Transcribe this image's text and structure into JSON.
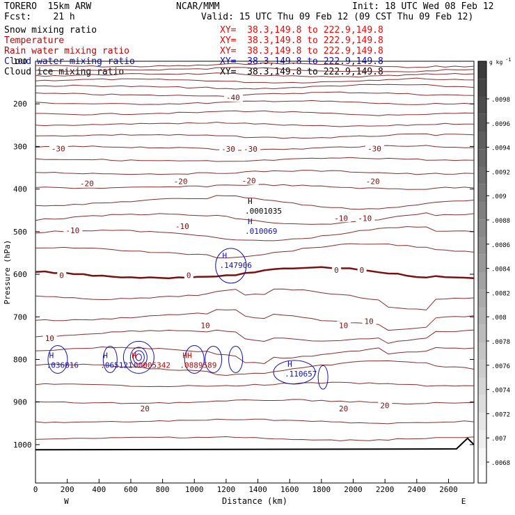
{
  "header": {
    "model": "TORERO  15km ARW",
    "center": "NCAR/MMM",
    "init": "Init: 18 UTC Wed 08 Feb 12",
    "fcst": "Fcst:    21 h",
    "valid": "Valid: 15 UTC Thu 09 Feb 12 (09 CST Thu 09 Feb 12)"
  },
  "fields": [
    {
      "label": "Snow mixing ratio",
      "xy": "XY=  38.3,149.8 to 222.9,149.8",
      "color": "#000000",
      "xy_color": "#ff0000"
    },
    {
      "label": "Temperature",
      "xy": "XY=  38.3,149.8 to 222.9,149.8",
      "color": "#cc0000",
      "xy_color": "#ff0000"
    },
    {
      "label": "Rain water mixing ratio",
      "xy": "XY=  38.3,149.8 to 222.9,149.8",
      "color": "#cc0000",
      "xy_color": "#ff0000"
    },
    {
      "label": "Cloud water mixing ratio",
      "xy": "XY=  38.3,149.8 to 222.9,149.8",
      "color": "#1010c0",
      "xy_color": "#1010c0"
    },
    {
      "label": "Cloud ice mixing ratio",
      "xy": "XY=  38.3,149.8 to 222.9,149.8",
      "color": "#000000",
      "xy_color": "#000000"
    }
  ],
  "chart_data": {
    "type": "contour-cross-section",
    "xlabel": "Distance (km)",
    "ylabel": "Pressure (hPa)",
    "xlim": [
      0,
      2760
    ],
    "ylim": [
      1090,
      100
    ],
    "x_ticks": [
      0,
      200,
      400,
      600,
      800,
      1000,
      1200,
      1400,
      1600,
      1800,
      2000,
      2200,
      2400,
      2600
    ],
    "y_ticks": [
      200,
      300,
      400,
      500,
      600,
      700,
      800,
      900,
      1000
    ],
    "y_top_tick": "100",
    "x_end_labels": {
      "left": "W",
      "right": "E"
    },
    "colorbar": {
      "unit": "g kg",
      "unit_sup": "-1",
      "ticks": [
        ".0098",
        ".0096",
        ".0094",
        ".0092",
        ".009",
        ".0088",
        ".0086",
        ".0084",
        ".0082",
        ".008",
        ".0078",
        ".0076",
        ".0074",
        ".0072",
        ".007",
        ".0068"
      ]
    },
    "temperature_labels": [
      {
        "text": "-40",
        "x": 1200,
        "p": 185
      },
      {
        "text": "-30",
        "x": 100,
        "p": 305
      },
      {
        "text": "-30",
        "x": 1170,
        "p": 306
      },
      {
        "text": "-30",
        "x": 1310,
        "p": 306
      },
      {
        "text": "-30",
        "x": 2090,
        "p": 305
      },
      {
        "text": "-20",
        "x": 280,
        "p": 387
      },
      {
        "text": "-20",
        "x": 870,
        "p": 382
      },
      {
        "text": "-20",
        "x": 1300,
        "p": 380
      },
      {
        "text": "-20",
        "x": 2080,
        "p": 382
      },
      {
        "text": "-10",
        "x": 190,
        "p": 497
      },
      {
        "text": "-10",
        "x": 880,
        "p": 487
      },
      {
        "text": "-10",
        "x": 1880,
        "p": 468
      },
      {
        "text": "-10",
        "x": 2030,
        "p": 468
      },
      {
        "text": "0",
        "x": 150,
        "p": 602
      },
      {
        "text": "0",
        "x": 950,
        "p": 602
      },
      {
        "text": "0",
        "x": 1880,
        "p": 590
      },
      {
        "text": "0",
        "x": 2040,
        "p": 590
      },
      {
        "text": "10",
        "x": 60,
        "p": 750
      },
      {
        "text": "10",
        "x": 1040,
        "p": 720
      },
      {
        "text": "10",
        "x": 1910,
        "p": 720
      },
      {
        "text": "10",
        "x": 2070,
        "p": 710
      },
      {
        "text": "20",
        "x": 660,
        "p": 915
      },
      {
        "text": "20",
        "x": 1910,
        "p": 915
      },
      {
        "text": "20",
        "x": 2170,
        "p": 908
      }
    ],
    "maxima_labels": [
      {
        "h": "H",
        "value": ".0001035",
        "x": 1380,
        "p": 448,
        "field": "snow"
      },
      {
        "h": "H",
        "value": ".010069",
        "x": 1380,
        "p": 495,
        "field": "cloud_water"
      },
      {
        "h": "H",
        "value": ".147906",
        "x": 1220,
        "p": 575,
        "field": "cloud_water"
      },
      {
        "h": "H",
        "value": ".036816",
        "x": 130,
        "p": 810,
        "field": "cloud_water"
      },
      {
        "h": "H",
        "value": ".065121",
        "x": 470,
        "p": 810,
        "field": "cloud_water"
      },
      {
        "h": "H",
        "value": ".00005342",
        "x": 650,
        "p": 810,
        "field": "rain"
      },
      {
        "h": "HH",
        "value": ".0889589",
        "x": 970,
        "p": 810,
        "field": "rain"
      },
      {
        "h": "H",
        "value": ".110657",
        "x": 1630,
        "p": 830,
        "field": "cloud_water"
      }
    ]
  }
}
